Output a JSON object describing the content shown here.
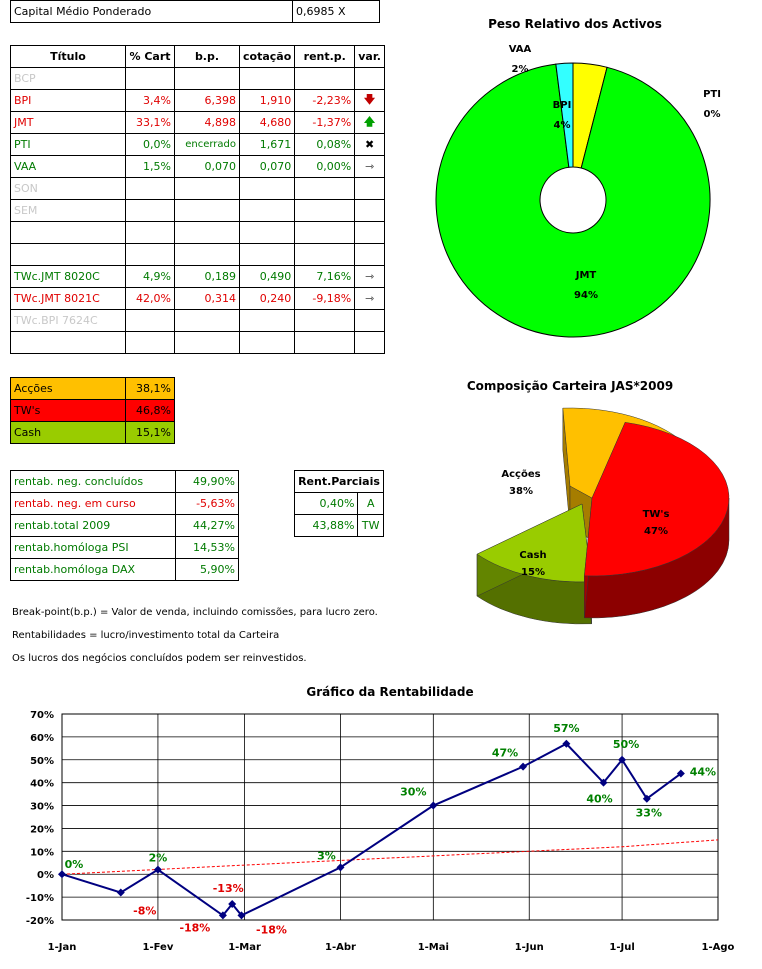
{
  "capital": {
    "label": "Capital Médio Ponderado",
    "value": "0,6985 X"
  },
  "table": {
    "headers": [
      "Título",
      "% Cart",
      "b.p.",
      "cotação",
      "rent.p.",
      "var."
    ],
    "rows": [
      {
        "titulo": "BCP",
        "cart": "",
        "bp": "",
        "cot": "",
        "rent": "",
        "var": "",
        "color": "gray"
      },
      {
        "titulo": "BPI",
        "cart": "3,4%",
        "bp": "6,398",
        "cot": "1,910",
        "rent": "-2,23%",
        "var": "down",
        "color": "red"
      },
      {
        "titulo": "JMT",
        "cart": "33,1%",
        "bp": "4,898",
        "cot": "4,680",
        "rent": "-1,37%",
        "var": "up",
        "color": "red"
      },
      {
        "titulo": "PTI",
        "cart": "0,0%",
        "bp": "encerrado",
        "cot": "1,671",
        "rent": "0,08%",
        "var": "x",
        "color": "green"
      },
      {
        "titulo": "VAA",
        "cart": "1,5%",
        "bp": "0,070",
        "cot": "0,070",
        "rent": "0,00%",
        "var": "right",
        "color": "green"
      },
      {
        "titulo": "SON",
        "cart": "",
        "bp": "",
        "cot": "",
        "rent": "",
        "var": "",
        "color": "gray"
      },
      {
        "titulo": "SEM",
        "cart": "",
        "bp": "",
        "cot": "",
        "rent": "",
        "var": "",
        "color": "gray"
      },
      {
        "titulo": "",
        "cart": "",
        "bp": "",
        "cot": "",
        "rent": "",
        "var": "",
        "color": "black"
      },
      {
        "titulo": "",
        "cart": "",
        "bp": "",
        "cot": "",
        "rent": "",
        "var": "",
        "color": "black"
      },
      {
        "titulo": "TWc.JMT 8020C",
        "cart": "4,9%",
        "bp": "0,189",
        "cot": "0,490",
        "rent": "7,16%",
        "var": "right",
        "color": "green"
      },
      {
        "titulo": "TWc.JMT 8021C",
        "cart": "42,0%",
        "bp": "0,314",
        "cot": "0,240",
        "rent": "-9,18%",
        "var": "right",
        "color": "red"
      },
      {
        "titulo": "TWc.BPI 7624C",
        "cart": "",
        "bp": "",
        "cot": "",
        "rent": "",
        "var": "",
        "color": "gray"
      },
      {
        "titulo": "",
        "cart": "",
        "bp": "",
        "cot": "",
        "rent": "",
        "var": "",
        "color": "black"
      }
    ]
  },
  "composition": [
    {
      "label": "Acções",
      "value": "38,1%",
      "bg": "#ffc000"
    },
    {
      "label": "TW's",
      "value": "46,8%",
      "bg": "#ff0000"
    },
    {
      "label": "Cash",
      "value": "15,1%",
      "bg": "#99cc00"
    }
  ],
  "rentab": [
    {
      "label": "rentab. neg. concluídos",
      "value": "49,90%",
      "color": "green"
    },
    {
      "label": "rentab. neg. em curso",
      "value": "-5,63%",
      "color": "red"
    },
    {
      "label": "rentab.total 2009",
      "value": "44,27%",
      "color": "green"
    },
    {
      "label": "rentab.homóloga PSI",
      "value": "14,53%",
      "color": "green"
    },
    {
      "label": "rentab.homóloga DAX",
      "value": "5,90%",
      "color": "green"
    }
  ],
  "parciais": {
    "header": "Rent.Parciais",
    "rows": [
      {
        "value": "0,40%",
        "code": "A"
      },
      {
        "value": "43,88%",
        "code": "TW"
      }
    ]
  },
  "notes": [
    "Break-point(b.p.) = Valor de venda, incluindo comissões, para lucro zero.",
    "Rentabilidades = lucro/investimento total da Carteira",
    "Os lucros dos negócios concluídos podem ser reinvestidos."
  ],
  "chart_data": [
    {
      "type": "pie",
      "title": "Peso Relativo dos Activos",
      "slices": [
        {
          "name": "JMT",
          "value": 94,
          "label": "94%",
          "color": "#00ff00"
        },
        {
          "name": "VAA",
          "value": 2,
          "label": "2%",
          "color": "#33ffff"
        },
        {
          "name": "BPI",
          "value": 4,
          "label": "4%",
          "color": "#ffff00"
        },
        {
          "name": "PTI",
          "value": 0,
          "label": "0%",
          "color": "#00ff00"
        }
      ]
    },
    {
      "type": "pie",
      "title": "Composição Carteira JAS*2009",
      "slices": [
        {
          "name": "Acções",
          "value": 38,
          "label": "38%",
          "color": "#ffc000"
        },
        {
          "name": "TW's",
          "value": 47,
          "label": "47%",
          "color": "#ff0000"
        },
        {
          "name": "Cash",
          "value": 15,
          "label": "15%",
          "color": "#99cc00"
        }
      ]
    },
    {
      "type": "line",
      "title": "Gráfico da Rentabilidade",
      "x_ticks": [
        "1-Jan",
        "1-Fev",
        "1-Mar",
        "1-Abr",
        "1-Mai",
        "1-Jun",
        "1-Jul",
        "1-Ago"
      ],
      "y_ticks": [
        "-20%",
        "-10%",
        "0%",
        "10%",
        "20%",
        "30%",
        "40%",
        "50%",
        "60%",
        "70%"
      ],
      "ylim": [
        -20,
        70
      ],
      "series": [
        {
          "points": [
            {
              "x": "2009-01-01",
              "y": 0,
              "label": "0%"
            },
            {
              "x": "2009-01-20",
              "y": -8,
              "label": "-8%"
            },
            {
              "x": "2009-02-01",
              "y": 2,
              "label": "2%"
            },
            {
              "x": "2009-02-22",
              "y": -18,
              "label": "-18%"
            },
            {
              "x": "2009-02-25",
              "y": -13,
              "label": "-13%"
            },
            {
              "x": "2009-02-28",
              "y": -18,
              "label": "-18%"
            },
            {
              "x": "2009-04-01",
              "y": 3,
              "label": "3%"
            },
            {
              "x": "2009-05-01",
              "y": 30,
              "label": "30%"
            },
            {
              "x": "2009-05-30",
              "y": 47,
              "label": "47%"
            },
            {
              "x": "2009-06-13",
              "y": 57,
              "label": "57%"
            },
            {
              "x": "2009-06-25",
              "y": 40,
              "label": "40%"
            },
            {
              "x": "2009-07-01",
              "y": 50,
              "label": "50%"
            },
            {
              "x": "2009-07-09",
              "y": 33,
              "label": "33%"
            },
            {
              "x": "2009-07-20",
              "y": 44,
              "label": "44%"
            }
          ],
          "color": "#000080"
        },
        {
          "type": "trend",
          "style": "dashed",
          "color": "#ff0000",
          "points": [
            {
              "x": "2009-01-01",
              "y": 0
            },
            {
              "x": "2009-03-01",
              "y": 4
            },
            {
              "x": "2009-05-01",
              "y": 8
            },
            {
              "x": "2009-07-01",
              "y": 12
            },
            {
              "x": "2009-08-01",
              "y": 15
            }
          ]
        }
      ]
    }
  ]
}
